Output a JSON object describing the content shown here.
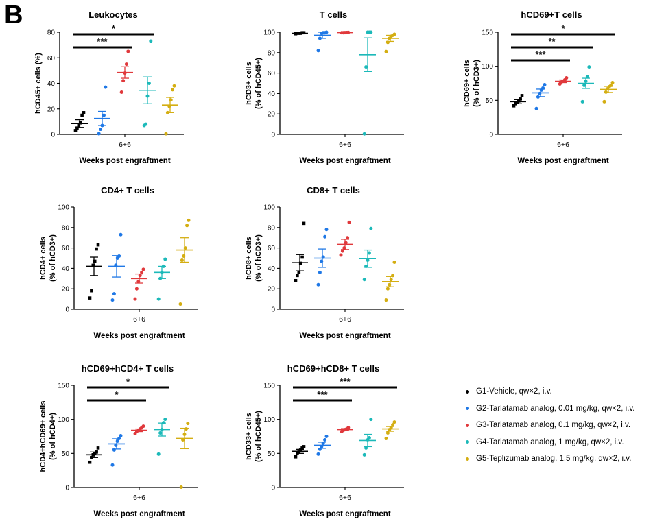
{
  "panel_label": "B",
  "legend": {
    "items": [
      {
        "label": "G1-Vehicle, qw×2, i.v.",
        "color": "#000000"
      },
      {
        "label": "G2-Tarlatamab analog, 0.01 mg/kg, qw×2, i.v.",
        "color": "#1F78E6"
      },
      {
        "label": "G3-Tarlatamab analog, 0.1 mg/kg, qw×2, i.v.",
        "color": "#E0393C"
      },
      {
        "label": "G4-Tarlatamab analog, 1 mg/kg, qw×2, i.v.",
        "color": "#1CB9B9"
      },
      {
        "label": "G5-Teplizumab analog, 1.5 mg/kg, qw×2, i.v.",
        "color": "#D4AE12"
      }
    ]
  },
  "chart_data": [
    {
      "type": "scatter",
      "title": "Leukocytes",
      "ylabel": [
        "hCD45+ cells (%)"
      ],
      "xlabel": "Weeks post engraftment",
      "xtick": "6+6",
      "ylim": [
        0,
        80
      ],
      "yticks": [
        0,
        20,
        40,
        60,
        80
      ],
      "series": [
        {
          "mean": 8.5,
          "sem": 3,
          "points": [
            3,
            5,
            7,
            9,
            15,
            17
          ]
        },
        {
          "mean": 12.5,
          "sem": 5.5,
          "points": [
            0.5,
            4,
            7,
            15,
            37
          ]
        },
        {
          "mean": 48.5,
          "sem": 4.5,
          "points": [
            33,
            42,
            48,
            55,
            65
          ]
        },
        {
          "mean": 34.5,
          "sem": 10.5,
          "points": [
            7,
            8,
            30,
            40,
            73
          ]
        },
        {
          "mean": 23,
          "sem": 6,
          "points": [
            0.5,
            17,
            22,
            27,
            35,
            38
          ]
        }
      ],
      "significance": [
        {
          "from": 0,
          "to": 3,
          "label": "*"
        },
        {
          "from": 0,
          "to": 2,
          "label": "***"
        }
      ]
    },
    {
      "type": "scatter",
      "title": "T cells",
      "ylabel": [
        "hCD3+ cells",
        "(% of hCD45+)"
      ],
      "xlabel": "Weeks post engraftment",
      "xtick": "6+6",
      "ylim": [
        0,
        100
      ],
      "yticks": [
        0,
        20,
        40,
        60,
        80,
        100
      ],
      "series": [
        {
          "mean": 99,
          "sem": 0.4,
          "points": [
            98.5,
            99,
            99,
            99,
            99.5,
            99.5
          ]
        },
        {
          "mean": 97,
          "sem": 3,
          "points": [
            82,
            94,
            99,
            99.5,
            99.5,
            100
          ]
        },
        {
          "mean": 99.6,
          "sem": 0.2,
          "points": [
            99.5,
            99.5,
            99.6,
            99.7,
            99.8
          ]
        },
        {
          "mean": 78,
          "sem": 16.5,
          "points": [
            0.5,
            66,
            100,
            100,
            100
          ]
        },
        {
          "mean": 94,
          "sem": 3,
          "points": [
            81,
            90,
            94,
            96,
            97,
            98
          ]
        }
      ],
      "significance": []
    },
    {
      "type": "scatter",
      "title": "hCD69+T cells",
      "ylabel": [
        "hCD69+ cells",
        "(% of hCD3+)"
      ],
      "xlabel": "Weeks post engraftment",
      "xtick": "6+6",
      "ylim": [
        0,
        150
      ],
      "yticks": [
        0,
        50,
        100,
        150
      ],
      "series": [
        {
          "mean": 48,
          "sem": 3,
          "points": [
            42,
            45,
            47,
            49,
            52,
            57
          ]
        },
        {
          "mean": 61,
          "sem": 5.5,
          "points": [
            38,
            55,
            60,
            65,
            68,
            73
          ]
        },
        {
          "mean": 78,
          "sem": 2,
          "points": [
            74,
            77,
            78,
            80,
            83
          ]
        },
        {
          "mean": 75,
          "sem": 7.5,
          "points": [
            48,
            72,
            78,
            85,
            99
          ]
        },
        {
          "mean": 66,
          "sem": 4.5,
          "points": [
            48,
            62,
            67,
            70,
            72,
            76
          ]
        }
      ],
      "significance": [
        {
          "from": 0,
          "to": 4,
          "label": "*"
        },
        {
          "from": 0,
          "to": 3,
          "label": "**"
        },
        {
          "from": 0,
          "to": 2,
          "label": "***"
        }
      ]
    },
    {
      "type": "scatter",
      "title": "CD4+ T cells",
      "ylabel": [
        "hCD4+ cells",
        "(% of hCD3+)"
      ],
      "xlabel": "Weeks post engraftment",
      "xtick": "6+6",
      "ylim": [
        0,
        100
      ],
      "yticks": [
        0,
        20,
        40,
        60,
        80,
        100
      ],
      "series": [
        {
          "mean": 42,
          "sem": 9,
          "points": [
            11,
            18,
            43,
            47,
            59,
            63
          ]
        },
        {
          "mean": 42,
          "sem": 10.5,
          "points": [
            9,
            15,
            43,
            50,
            52,
            73
          ]
        },
        {
          "mean": 30,
          "sem": 4.5,
          "points": [
            10,
            20,
            27,
            33,
            36,
            39
          ]
        },
        {
          "mean": 36,
          "sem": 6,
          "points": [
            10,
            30,
            36,
            42,
            49
          ]
        },
        {
          "mean": 58,
          "sem": 12,
          "points": [
            5,
            48,
            52,
            60,
            82,
            87
          ]
        }
      ],
      "significance": []
    },
    {
      "type": "scatter",
      "title": "CD8+ T cells",
      "ylabel": [
        "hCD8+ cells",
        "(% of hCD3+)"
      ],
      "xlabel": "Weeks post engraftment",
      "xtick": "6+6",
      "ylim": [
        0,
        100
      ],
      "yticks": [
        0,
        20,
        40,
        60,
        80,
        100
      ],
      "series": [
        {
          "mean": 45.5,
          "sem": 8,
          "points": [
            28,
            33,
            36,
            45,
            51,
            84
          ]
        },
        {
          "mean": 50,
          "sem": 9,
          "points": [
            24,
            36,
            47,
            51,
            71,
            78
          ]
        },
        {
          "mean": 63.5,
          "sem": 5,
          "points": [
            53,
            57,
            60,
            65,
            70,
            85
          ]
        },
        {
          "mean": 49.5,
          "sem": 8.5,
          "points": [
            29,
            42,
            48,
            55,
            79
          ]
        },
        {
          "mean": 27,
          "sem": 5,
          "points": [
            9,
            20,
            24,
            29,
            33,
            46
          ]
        }
      ],
      "significance": []
    },
    {
      "type": "scatter",
      "title": "hCD69+hCD4+ T cells",
      "ylabel": [
        "hCD4+hCD69+ cells",
        "(% of hCD4+)"
      ],
      "xlabel": "Weeks post engraftment",
      "xtick": "6+6",
      "ylim": [
        0,
        150
      ],
      "yticks": [
        0,
        50,
        100,
        150
      ],
      "series": [
        {
          "mean": 48,
          "sem": 4,
          "points": [
            37,
            44,
            48,
            50,
            52,
            58
          ]
        },
        {
          "mean": 64,
          "sem": 7.5,
          "points": [
            33,
            55,
            62,
            68,
            72,
            76
          ]
        },
        {
          "mean": 84,
          "sem": 2,
          "points": [
            79,
            82,
            84,
            86,
            88,
            90
          ]
        },
        {
          "mean": 85,
          "sem": 9.5,
          "points": [
            49,
            80,
            85,
            95,
            100
          ]
        },
        {
          "mean": 72,
          "sem": 15,
          "points": [
            0.5,
            70,
            78,
            86,
            94
          ]
        }
      ],
      "significance": [
        {
          "from": 0,
          "to": 3,
          "label": "*"
        },
        {
          "from": 0,
          "to": 2,
          "label": "*"
        }
      ]
    },
    {
      "type": "scatter",
      "title": "hCD69+hCD8+ T cells",
      "ylabel": [
        "hCD33+ cells",
        "(% of hCD45+)"
      ],
      "xlabel": "Weeks post engraftment",
      "xtick": "6+6",
      "ylim": [
        0,
        150
      ],
      "yticks": [
        0,
        50,
        100,
        150
      ],
      "series": [
        {
          "mean": 53,
          "sem": 3,
          "points": [
            45,
            50,
            52,
            55,
            58,
            60
          ]
        },
        {
          "mean": 62,
          "sem": 4.5,
          "points": [
            49,
            56,
            60,
            65,
            70,
            75
          ]
        },
        {
          "mean": 85,
          "sem": 1.5,
          "points": [
            82,
            84,
            85,
            86,
            88
          ]
        },
        {
          "mean": 69,
          "sem": 9,
          "points": [
            48,
            58,
            70,
            73,
            100
          ]
        },
        {
          "mean": 86,
          "sem": 3.5,
          "points": [
            72,
            80,
            85,
            88,
            92,
            96
          ]
        }
      ],
      "significance": [
        {
          "from": 0,
          "to": 4,
          "label": "***"
        },
        {
          "from": 0,
          "to": 2,
          "label": "***"
        }
      ]
    }
  ]
}
